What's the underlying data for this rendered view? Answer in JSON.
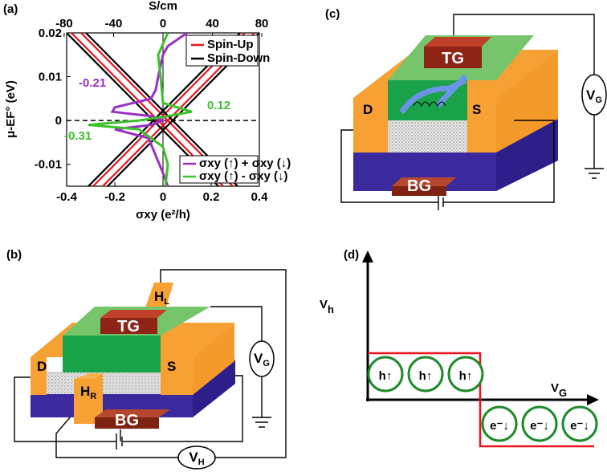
{
  "panels": {
    "a": "(a)",
    "b": "(b)",
    "c": "(c)",
    "d": "(d)"
  },
  "chart_data": {
    "type": "line",
    "x2_label": "S/cm",
    "xlabel": "σxy (e²/h)",
    "ylabel": "μ-EF° (eV)",
    "xlim": [
      -0.4,
      0.4
    ],
    "xticks": [
      -0.4,
      -0.2,
      0,
      0.2,
      0.4
    ],
    "x2lim": [
      -78,
      78
    ],
    "x2ticks": [
      -80,
      -40,
      0,
      40,
      80
    ],
    "ylim": [
      -0.015,
      0.02
    ],
    "yticks": [
      -0.01,
      0,
      0.01,
      0.02
    ],
    "series": [
      {
        "name": "Spin-Up",
        "color": "#e8141b",
        "x": [
          -0.38,
          0.25,
          null,
          -0.34,
          0.29,
          null,
          0.38,
          -0.25,
          null,
          0.34,
          -0.29
        ],
        "values": [
          0.02,
          -0.015,
          null,
          0.02,
          -0.015,
          null,
          0.02,
          -0.015,
          null,
          0.02,
          -0.015
        ]
      },
      {
        "name": "Spin-Down",
        "color": "#000000",
        "x": [
          -0.4,
          0.23,
          null,
          -0.32,
          0.31,
          null,
          0.4,
          -0.23,
          null,
          0.32,
          -0.31
        ],
        "values": [
          0.02,
          -0.015,
          null,
          0.02,
          -0.015,
          null,
          0.02,
          -0.015,
          null,
          0.02,
          -0.015
        ]
      },
      {
        "name": "σxy (↑) + σxy (↓)",
        "color": "#9b2fc4",
        "x": [
          0.1,
          0.02,
          0.0,
          -0.02,
          -0.03,
          -0.05,
          -0.2,
          -0.21,
          -0.05,
          0.0,
          -0.05,
          -0.2,
          -0.06,
          -0.03,
          0.0,
          0.02
        ],
        "values": [
          0.02,
          0.017,
          0.015,
          0.01,
          0.007,
          0.005,
          0.003,
          0.002,
          0.001,
          0,
          -0.001,
          -0.002,
          -0.004,
          -0.008,
          -0.012,
          -0.015
        ]
      },
      {
        "name": "σxy (↑) - σxy (↓)",
        "color": "#3fc02f",
        "x": [
          0.02,
          -0.02,
          -0.01,
          0.0,
          0.12,
          0.02,
          -0.1,
          -0.31,
          -0.1,
          0.0,
          0.02,
          0.01
        ],
        "values": [
          0.02,
          0.015,
          0.01,
          0.004,
          0.002,
          0.001,
          0,
          -0.001,
          -0.002,
          -0.006,
          -0.01,
          -0.015
        ]
      }
    ],
    "annotations": [
      {
        "text": "-0.21",
        "color": "#9b2fc4"
      },
      {
        "text": "0.12",
        "color": "#3fc02f"
      },
      {
        "text": "-0.31",
        "color": "#3fc02f"
      }
    ]
  },
  "panel_b": {
    "top_gate": "TG",
    "back_gate": "BG",
    "drain": "D",
    "source": "S",
    "hall_left": {
      "main": "H",
      "sub": "L"
    },
    "hall_right": {
      "main": "H",
      "sub": "R"
    },
    "gate_voltage": {
      "main": "V",
      "sub": "G"
    },
    "hall_voltage": {
      "main": "V",
      "sub": "H"
    }
  },
  "panel_c": {
    "top_gate": "TG",
    "back_gate": "BG",
    "drain": "D",
    "source": "S",
    "gate_voltage": {
      "main": "V",
      "sub": "G"
    }
  },
  "panel_d": {
    "y_axis": {
      "main": "V",
      "sub": "h"
    },
    "x_axis": {
      "main": "V",
      "sub": "G"
    },
    "holes": [
      "h↑",
      "h↑",
      "h↑"
    ],
    "electrons": [
      "e⁻↓",
      "e⁻↓",
      "e⁻↓"
    ]
  }
}
